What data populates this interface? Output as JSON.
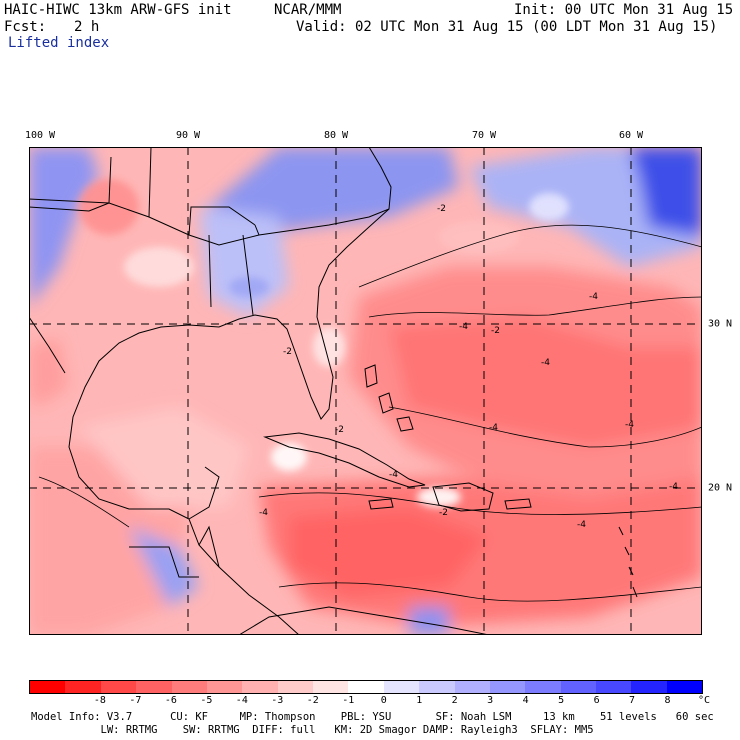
{
  "header": {
    "model_title": "HAIC-HIWC 13km ARW-GFS init",
    "center": "NCAR/MMM",
    "init": "Init: 00 UTC Mon 31 Aug 15",
    "fcst_label": "Fcst:",
    "fcst_value": "2 h",
    "valid": "Valid: 02 UTC Mon 31 Aug 15 (00 LDT Mon 31 Aug 15)",
    "field": "Lifted index"
  },
  "map": {
    "longitudes": [
      {
        "label": "100 W"
      },
      {
        "label": "90 W"
      },
      {
        "label": "80 W"
      },
      {
        "label": "70 W"
      },
      {
        "label": "60 W"
      }
    ],
    "latitudes": [
      {
        "label": "30 N"
      },
      {
        "label": "20 N"
      }
    ],
    "contour_labels": [
      "-2",
      "-2",
      "-4",
      "-4",
      "-4",
      "-4",
      "-4",
      "-2",
      "-4",
      "-4",
      "-2",
      "-4",
      "-4",
      "-2"
    ]
  },
  "colorbar": {
    "colors": [
      "#ff0000",
      "#ff2424",
      "#ff4848",
      "#ff6262",
      "#ff7c7c",
      "#ff9696",
      "#ffb0b0",
      "#ffcaca",
      "#ffe4e4",
      "#ffffff",
      "#e4e4ff",
      "#cacaff",
      "#b0b0ff",
      "#9696ff",
      "#7c7cff",
      "#6262ff",
      "#4848ff",
      "#2424ff",
      "#0000ff"
    ],
    "labels": [
      "-8",
      "-7",
      "-6",
      "-5",
      "-4",
      "-3",
      "-2",
      "-1",
      "0",
      "1",
      "2",
      "3",
      "4",
      "5",
      "6",
      "7",
      "8"
    ],
    "unit": "°C"
  },
  "footer": {
    "line1": "Model Info: V3.7      CU: KF     MP: Thompson    PBL: YSU       SF: Noah LSM     13 km    51 levels   60 sec",
    "line2": "           LW: RRTMG    SW: RRTMG  DIFF: full   KM: 2D Smagor DAMP: Rayleigh3  SFLAY: MM5"
  }
}
